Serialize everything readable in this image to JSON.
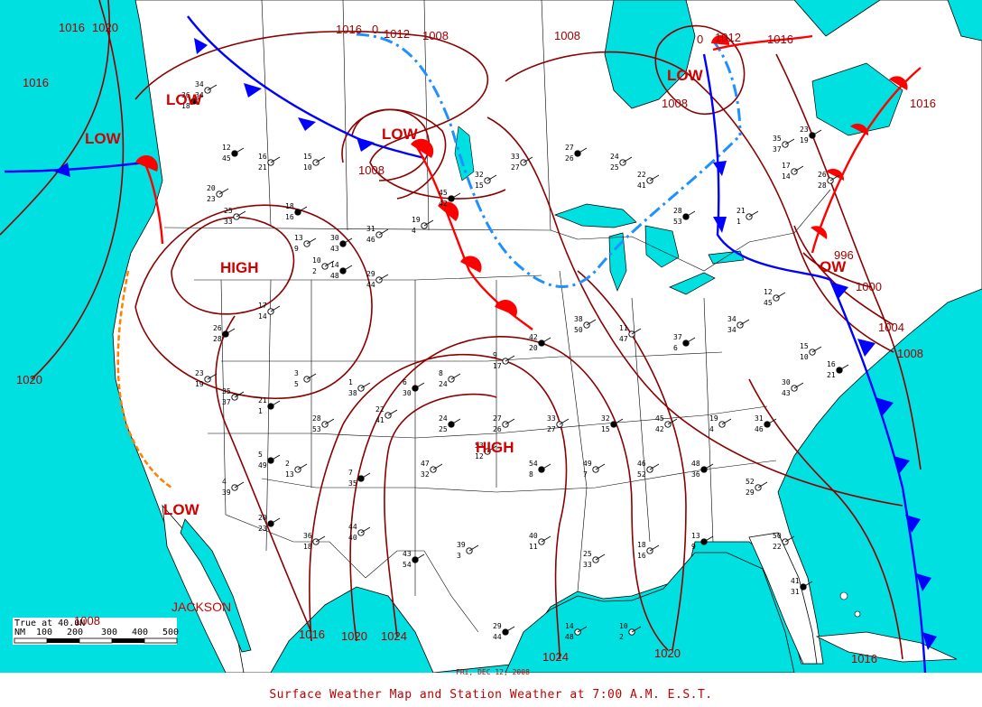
{
  "title": "Surface Weather Map and Station Weather at 7:00 A.M. E.S.T.",
  "date_stamp": "FRI, DEC 12, 2008",
  "colors": {
    "water": "#00e0e0",
    "land": "#ffffff",
    "isobar": "#8b0000",
    "cold_front": "#0000ff",
    "warm_front": "#ff0000",
    "trough": "#1e90ff",
    "label": "#cc0000"
  },
  "pressure_centers": [
    {
      "type": "LOW",
      "label": "LOW"
    },
    {
      "type": "LOW",
      "label": "LOW"
    },
    {
      "type": "LOW",
      "label": "LOW"
    },
    {
      "type": "LOW",
      "label": "LOW"
    },
    {
      "type": "LOW",
      "label": "LOW"
    },
    {
      "type": "LOW",
      "label": "OW",
      "pressure": "996"
    },
    {
      "type": "HIGH",
      "label": "HIGH"
    },
    {
      "type": "HIGH",
      "label": "HIGH"
    }
  ],
  "isobar_labels": [
    "1016",
    "1020",
    "1016",
    "1016",
    "0",
    "1012",
    "1008",
    "1008",
    "0",
    "1012",
    "1016",
    "1008",
    "1008",
    "1016",
    "1000",
    "1004",
    "1008",
    "1020",
    "1016",
    "1020",
    "1024",
    "1024",
    "1020",
    "1016",
    "996"
  ],
  "place_labels": [
    "JACKSON"
  ],
  "scale_bar": {
    "caption": "True at 40.0N",
    "overlay": "1008",
    "unit": "NM",
    "ticks": [
      "100",
      "200",
      "300",
      "400",
      "500"
    ]
  },
  "stations": [
    "36",
    "20",
    "25",
    "18",
    "13",
    "10",
    "14",
    "29",
    "17",
    "26",
    "23",
    "35",
    "21",
    "28",
    "22",
    "24",
    "27",
    "33",
    "32",
    "45",
    "19",
    "31",
    "30",
    "15",
    "16",
    "12",
    "34",
    "37",
    "11",
    "38",
    "42",
    "9",
    "8",
    "6",
    "1",
    "3",
    "5",
    "4",
    "2",
    "7",
    "47",
    "53",
    "54",
    "49",
    "46",
    "48",
    "52",
    "50",
    "41",
    "40",
    "39",
    "43",
    "44"
  ]
}
